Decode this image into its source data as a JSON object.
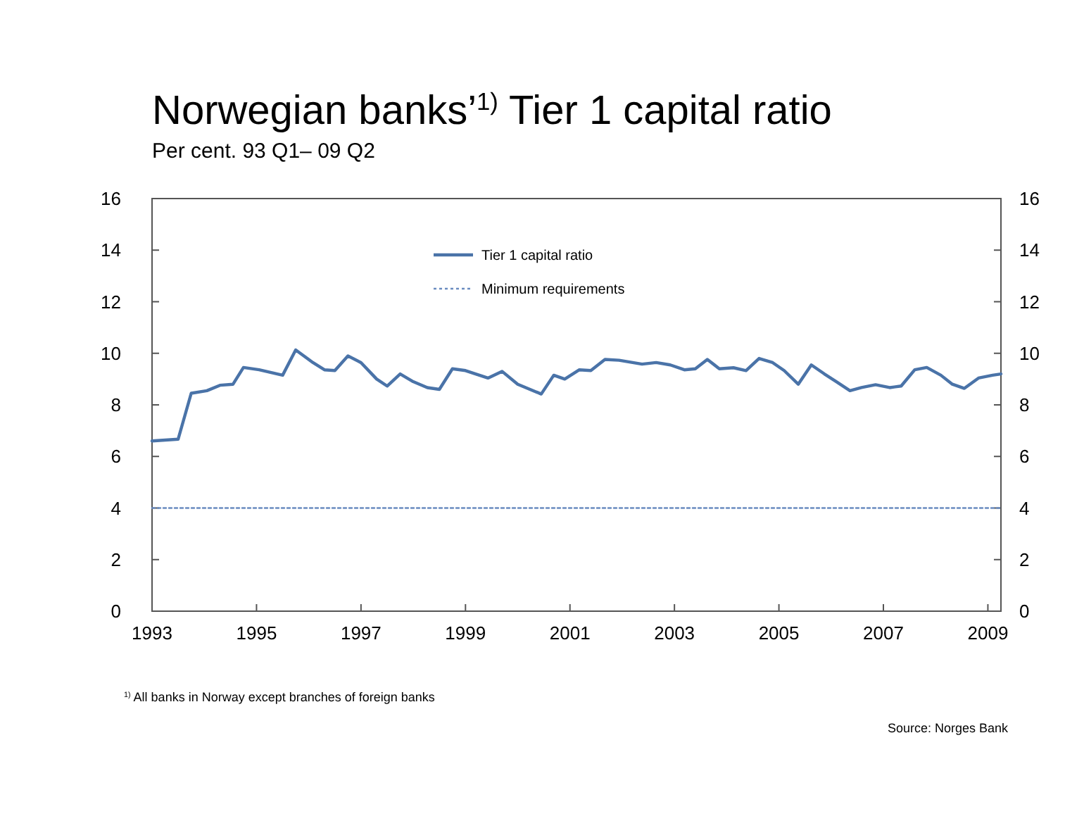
{
  "chart_data": {
    "type": "line",
    "title": "Norwegian banks’$^{1)}$ Tier 1 capital ratio",
    "subtitle": "Per cent. 93 Q1– 09 Q2",
    "annotations": [
      "$^{1)}$ All banks in Norway except branches of foreign banks",
      "Source: Norges Bank"
    ],
    "xlim": [
      1993,
      2009.25
    ],
    "xticks": [
      1993,
      1995,
      1997,
      1999,
      2001,
      2003,
      2005,
      2007,
      2009
    ],
    "ylim": [
      0,
      16
    ],
    "yticks": [
      0,
      2,
      4,
      6,
      8,
      10,
      12,
      14,
      16
    ],
    "y2lim": [
      0,
      16
    ],
    "y2ticks": [
      0,
      2,
      4,
      6,
      8,
      10,
      12,
      14,
      16
    ],
    "grid": false,
    "legend": "top",
    "series": [
      {
        "name": "Tier 1 capital ratio",
        "color": "#4a73a8",
        "line_style": "solid",
        "x": [
          1993.0,
          1993.5,
          1993.75,
          1994.05,
          1994.3,
          1994.55,
          1994.75,
          1995.05,
          1995.5,
          1995.75,
          1996.08,
          1996.3,
          1996.5,
          1996.75,
          1997.0,
          1997.3,
          1997.5,
          1997.75,
          1998.0,
          1998.27,
          1998.5,
          1998.75,
          1999.0,
          1999.43,
          1999.7,
          2000.0,
          2000.45,
          2000.69,
          2000.9,
          2001.18,
          2001.4,
          2001.67,
          2001.94,
          2002.38,
          2002.65,
          2002.92,
          2003.19,
          2003.4,
          2003.63,
          2003.86,
          2004.13,
          2004.37,
          2004.62,
          2004.88,
          2005.1,
          2005.37,
          2005.62,
          2005.87,
          2006.1,
          2006.36,
          2006.58,
          2006.85,
          2007.12,
          2007.34,
          2007.6,
          2007.83,
          2008.1,
          2008.32,
          2008.55,
          2008.82,
          2009.09,
          2009.25
        ],
        "values": [
          6.6,
          6.67,
          8.45,
          8.55,
          8.76,
          8.8,
          9.45,
          9.36,
          9.15,
          10.13,
          9.64,
          9.36,
          9.33,
          9.9,
          9.64,
          9.0,
          8.73,
          9.2,
          8.9,
          8.67,
          8.6,
          9.4,
          9.33,
          9.04,
          9.3,
          8.8,
          8.42,
          9.15,
          9.0,
          9.36,
          9.33,
          9.76,
          9.73,
          9.58,
          9.64,
          9.55,
          9.36,
          9.4,
          9.76,
          9.4,
          9.44,
          9.33,
          9.8,
          9.64,
          9.33,
          8.8,
          9.55,
          9.2,
          8.9,
          8.55,
          8.67,
          8.78,
          8.67,
          8.73,
          9.36,
          9.45,
          9.15,
          8.8,
          8.64,
          9.04,
          9.15,
          9.2
        ]
      },
      {
        "name": "Minimum requirements",
        "color": "#6a8cc0",
        "line_style": "dotted",
        "x": [
          1993,
          2009.25
        ],
        "values": [
          4,
          4
        ]
      }
    ]
  }
}
